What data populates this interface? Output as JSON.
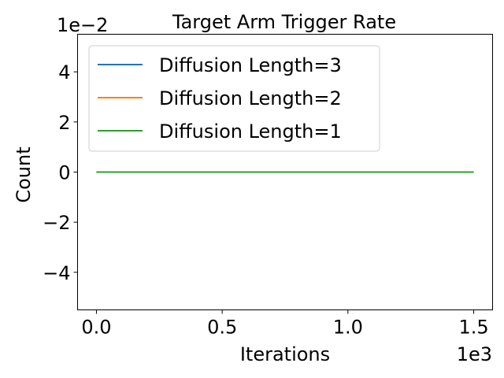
{
  "chart_data": {
    "type": "line",
    "title": "Target Arm Trigger Rate",
    "xlabel": "Iterations",
    "ylabel": "Count",
    "x_offset_text": "1e3",
    "y_offset_text": "1e−2",
    "xlim": [
      -0.075,
      1.575
    ],
    "ylim": [
      -5.5,
      5.5
    ],
    "x_ticks": [
      0.0,
      0.5,
      1.0,
      1.5
    ],
    "x_tick_labels": [
      "0.0",
      "0.5",
      "1.0",
      "1.5"
    ],
    "y_ticks": [
      -4,
      -2,
      0,
      2,
      4
    ],
    "y_tick_labels": [
      "−4",
      "−2",
      "0",
      "2",
      "4"
    ],
    "x": [
      0.0,
      1.5
    ],
    "series": [
      {
        "name": "Diffusion Length=3",
        "color": "#1f77b4",
        "values": [
          0,
          0
        ]
      },
      {
        "name": "Diffusion Length=2",
        "color": "#ff7f0e",
        "values": [
          0,
          0
        ]
      },
      {
        "name": "Diffusion Length=1",
        "color": "#2ca02c",
        "values": [
          0,
          0
        ]
      }
    ],
    "legend": "top-left",
    "grid": false
  }
}
